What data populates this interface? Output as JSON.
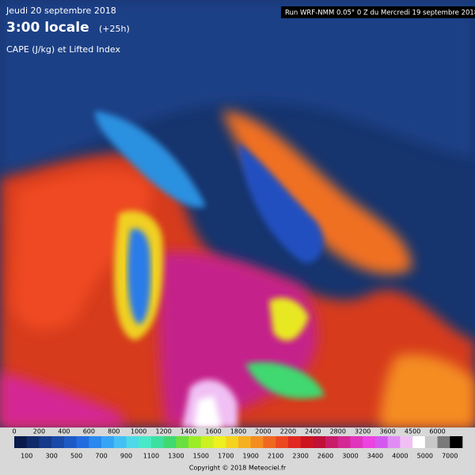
{
  "header": {
    "date": "Jeudi 20 septembre 2018",
    "time": "3:00 locale",
    "lead": "(+25h)",
    "product": "CAPE (J/kg) et Lifted Index",
    "run": "Run WRF-NMM 0.05° 0 Z du Mercredi 19 septembre 2018"
  },
  "colorbar": {
    "top_labels": [
      "0",
      "200",
      "400",
      "600",
      "800",
      "1000",
      "1200",
      "1400",
      "1600",
      "1800",
      "2000",
      "2200",
      "2400",
      "2800",
      "3200",
      "3600",
      "4500",
      "6000"
    ],
    "bottom_labels": [
      "100",
      "300",
      "500",
      "700",
      "900",
      "1100",
      "1300",
      "1500",
      "1700",
      "1900",
      "2100",
      "2300",
      "2600",
      "3000",
      "3400",
      "4000",
      "5000",
      "7000"
    ],
    "colors": [
      "#0a1a4a",
      "#112a6a",
      "#163a8a",
      "#1a4aa8",
      "#1e5ac6",
      "#226ce0",
      "#2a88ee",
      "#36a4f4",
      "#44c0f4",
      "#4ed8e8",
      "#48e8c8",
      "#3ee0a0",
      "#40d870",
      "#6ae040",
      "#9cec28",
      "#ccf020",
      "#eef020",
      "#f4d420",
      "#f4b020",
      "#f48c20",
      "#f06820",
      "#ec4820",
      "#e02820",
      "#cc1420",
      "#c01038",
      "#c81c68",
      "#d42894",
      "#e036bc",
      "#ec44e0",
      "#d458f0",
      "#e08cf4",
      "#f0c0f4",
      "#ffffff",
      "#c8c8c8",
      "#7a7a7a",
      "#000000"
    ]
  },
  "footer": {
    "copyright": "Copyright © 2018 Meteociel.fr"
  }
}
